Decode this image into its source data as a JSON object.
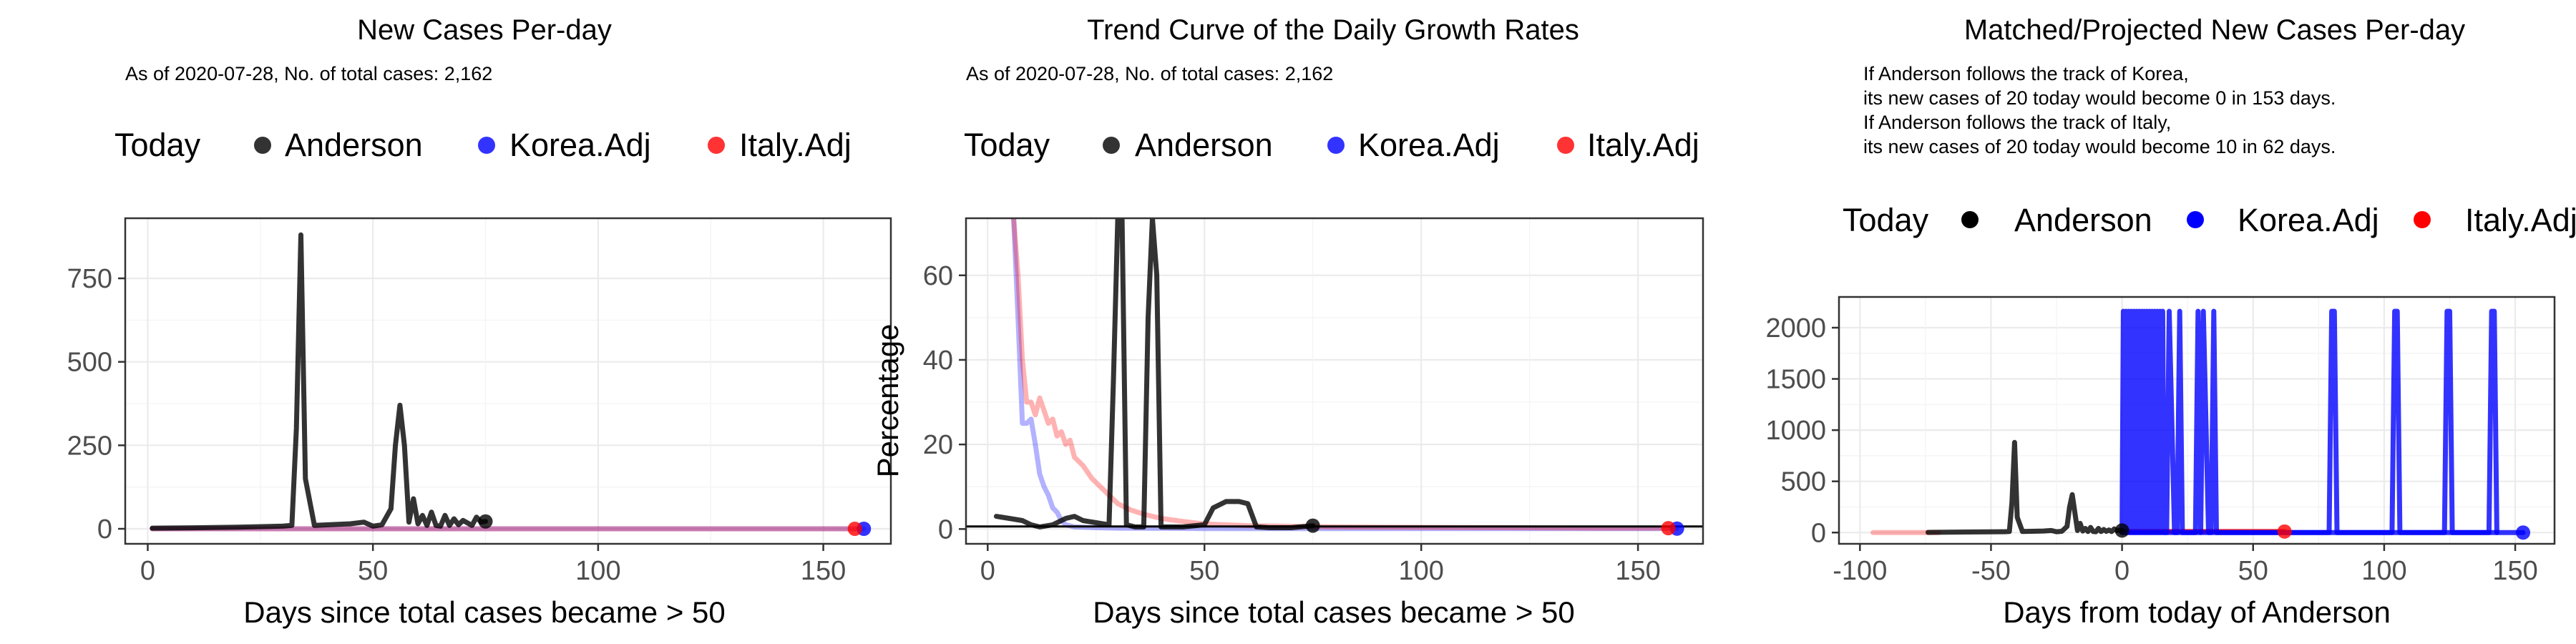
{
  "chart_data": [
    {
      "type": "line",
      "title": "New Cases Per-day",
      "subtitle": "As of 2020-07-28, No. of total cases: 2,162",
      "legend": {
        "title": "Today",
        "position": "top",
        "entries": [
          "Anderson",
          "Korea.Adj",
          "Italy.Adj"
        ]
      },
      "xlabel": "Days since total cases became > 50",
      "ylabel": "",
      "xlim": [
        -5,
        165
      ],
      "ylim": [
        -45,
        930
      ],
      "xticks": [
        0,
        50,
        100,
        150
      ],
      "yticks": [
        0,
        250,
        500,
        750
      ],
      "grid": true,
      "series": [
        {
          "name": "Korea.Adj",
          "color": "#0000ff",
          "opacity": 0.3,
          "x": [
            1,
            159
          ],
          "y": [
            0,
            0
          ]
        },
        {
          "name": "Italy.Adj",
          "color": "#ff0000",
          "opacity": 0.3,
          "x": [
            1,
            157
          ],
          "y": [
            0,
            0
          ]
        },
        {
          "name": "Anderson",
          "color": "#000000",
          "opacity": 0.8,
          "x": [
            1,
            10,
            20,
            30,
            32,
            33,
            34,
            35,
            37,
            45,
            48,
            50,
            52,
            54,
            55,
            56,
            57,
            58,
            59,
            60,
            61,
            62,
            63,
            64,
            65,
            66,
            67,
            68,
            69,
            70,
            72,
            73,
            74,
            75
          ],
          "y": [
            2,
            3,
            5,
            8,
            10,
            300,
            880,
            150,
            10,
            15,
            20,
            8,
            12,
            60,
            250,
            370,
            250,
            20,
            90,
            15,
            40,
            10,
            50,
            10,
            8,
            40,
            10,
            30,
            12,
            25,
            10,
            35,
            20,
            22
          ]
        }
      ],
      "today_points": [
        {
          "name": "Anderson",
          "color": "#000000",
          "x": 75,
          "y": 22
        },
        {
          "name": "Korea.Adj",
          "color": "#0000ff",
          "x": 159,
          "y": 0
        },
        {
          "name": "Italy.Adj",
          "color": "#ff0000",
          "x": 157,
          "y": 0
        }
      ]
    },
    {
      "type": "line",
      "title": "Trend Curve of the Daily Growth Rates",
      "subtitle": "As of 2020-07-28, No. of total cases: 2,162",
      "legend": {
        "title": "Today",
        "position": "top",
        "entries": [
          "Anderson",
          "Korea.Adj",
          "Italy.Adj"
        ]
      },
      "xlabel": "Days since total cases became > 50",
      "ylabel": "Percentage",
      "xlim": [
        -5,
        165
      ],
      "ylim": [
        -3.5,
        73.5
      ],
      "xticks": [
        0,
        50,
        100,
        150
      ],
      "yticks": [
        0,
        20,
        40,
        60
      ],
      "grid": true,
      "hline": 0.6,
      "series": [
        {
          "name": "Korea.Adj",
          "color": "#0000ff",
          "opacity": 0.3,
          "x": [
            6,
            7,
            8,
            9,
            10,
            11,
            12,
            13,
            14,
            15,
            16,
            17,
            18,
            20,
            25,
            30,
            50,
            100,
            159
          ],
          "y": [
            73.5,
            50,
            25,
            25,
            26,
            20,
            13,
            10,
            8,
            5,
            4,
            2,
            1,
            0.5,
            0.3,
            0.2,
            0.1,
            0.1,
            0.1
          ]
        },
        {
          "name": "Italy.Adj",
          "color": "#ff0000",
          "opacity": 0.3,
          "x": [
            6,
            7,
            8,
            9,
            10,
            11,
            12,
            13,
            14,
            15,
            16,
            17,
            18,
            19,
            20,
            22,
            24,
            26,
            28,
            30,
            33,
            36,
            40,
            45,
            50,
            60,
            80,
            100,
            120,
            140,
            157
          ],
          "y": [
            73.5,
            60,
            40,
            30,
            30,
            27,
            31,
            28,
            25,
            26,
            22,
            23,
            20,
            21,
            17,
            15,
            12,
            10,
            8,
            6,
            4.5,
            3.5,
            2.5,
            1.8,
            1.2,
            0.8,
            0.5,
            0.4,
            0.3,
            0.2,
            0.2
          ]
        },
        {
          "name": "Anderson",
          "color": "#000000",
          "opacity": 0.8,
          "x": [
            2,
            5,
            8,
            10,
            12,
            15,
            18,
            20,
            22,
            25,
            28,
            29,
            30,
            31,
            32,
            34,
            36,
            37,
            38,
            39,
            40,
            45,
            50,
            52,
            55,
            58,
            60,
            62,
            65,
            70,
            75
          ],
          "y": [
            3,
            2.5,
            2,
            1,
            0.5,
            1,
            2.5,
            3,
            2,
            1.5,
            1,
            35,
            73.5,
            73.5,
            1,
            0.5,
            0.5,
            50,
            73.5,
            60,
            0.5,
            0.5,
            1,
            5,
            6.5,
            6.5,
            6,
            0.5,
            0.3,
            0.3,
            0.8
          ]
        }
      ],
      "today_points": [
        {
          "name": "Anderson",
          "color": "#000000",
          "x": 75,
          "y": 0.8
        },
        {
          "name": "Korea.Adj",
          "color": "#0000ff",
          "x": 159,
          "y": 0.1
        },
        {
          "name": "Italy.Adj",
          "color": "#ff0000",
          "x": 157,
          "y": 0.2
        }
      ]
    },
    {
      "type": "line",
      "title": "Matched/Projected New Cases Per-day",
      "subtitle_lines": [
        "If Anderson follows the track of Korea,",
        "its new cases of 20 today would become 0 in 153 days.",
        "If Anderson follows the track of Italy,",
        "its new cases of 20 today would become 10 in 62 days."
      ],
      "legend": {
        "title": "Today",
        "position": "top",
        "entries": [
          "Anderson",
          "Korea.Adj",
          "Italy.Adj"
        ]
      },
      "xlabel": "Days from today of Anderson",
      "ylabel": "",
      "xlim": [
        -108,
        165
      ],
      "ylim": [
        -110,
        2300
      ],
      "xticks": [
        -100,
        -50,
        0,
        50,
        100,
        150
      ],
      "yticks": [
        0,
        500,
        1000,
        1500,
        2000
      ],
      "grid": true,
      "series": [
        {
          "name": "Italy.Adj",
          "color": "#ff0000",
          "opacity": 0.3,
          "x": [
            -95,
            -70
          ],
          "y": [
            0,
            0
          ]
        },
        {
          "name": "Italy.Adj",
          "color": "#ff0000",
          "opacity": 0.8,
          "x": [
            0,
            62
          ],
          "y": [
            10,
            10
          ]
        },
        {
          "name": "Korea.Adj",
          "color": "#0000ff",
          "opacity": 0.8,
          "x": [
            0,
            153
          ],
          "y": [
            0,
            0
          ]
        },
        {
          "name": "Korea.Adj",
          "color": "#0000ff",
          "opacity": 0.8,
          "x": [
            0,
            0.5,
            1,
            1.5,
            2,
            2.5,
            3,
            3.5,
            4,
            4.5,
            5,
            5.5,
            6,
            6.5,
            7,
            7.5,
            8,
            8.5,
            9,
            9.5,
            10,
            10.5,
            11,
            11.5,
            12,
            12.5,
            13,
            13.5,
            14,
            14.5,
            15,
            15.5,
            16,
            17,
            18,
            20,
            21,
            22,
            23,
            25,
            28,
            29,
            30,
            31,
            33,
            34,
            35,
            36,
            37,
            79,
            80,
            81,
            82,
            103,
            104,
            105,
            106,
            123,
            124,
            125,
            126,
            140,
            141,
            142,
            143
          ],
          "y": [
            0,
            2160,
            0,
            2160,
            0,
            2160,
            0,
            2160,
            0,
            2160,
            0,
            2160,
            0,
            2160,
            0,
            2160,
            0,
            2160,
            0,
            2160,
            0,
            2160,
            0,
            2160,
            0,
            2160,
            0,
            2160,
            0,
            2160,
            0,
            2160,
            0,
            0,
            2160,
            0,
            0,
            2160,
            0,
            0,
            0,
            2160,
            0,
            2160,
            0,
            0,
            2160,
            0,
            0,
            0,
            2160,
            2160,
            0,
            0,
            2160,
            2160,
            0,
            0,
            2160,
            2160,
            0,
            0,
            2160,
            2160,
            0
          ]
        },
        {
          "name": "Anderson",
          "color": "#000000",
          "opacity": 0.8,
          "x": [
            -74,
            -60,
            -45,
            -43,
            -42,
            -41,
            -40,
            -38,
            -30,
            -27,
            -25,
            -23,
            -21,
            -20,
            -19,
            -17,
            -16,
            -15,
            -14,
            -13,
            -12,
            -11,
            -10,
            -9,
            -8,
            -7,
            -6,
            -5,
            -4,
            -3,
            -2,
            -1,
            0
          ],
          "y": [
            2,
            5,
            8,
            10,
            300,
            880,
            150,
            10,
            15,
            20,
            8,
            12,
            60,
            250,
            370,
            20,
            90,
            15,
            40,
            10,
            50,
            10,
            8,
            40,
            10,
            30,
            12,
            25,
            10,
            35,
            20,
            22,
            20
          ]
        }
      ],
      "today_points": [
        {
          "name": "Anderson",
          "color": "#000000",
          "x": 0,
          "y": 20
        },
        {
          "name": "Italy.Adj",
          "color": "#ff0000",
          "x": 62,
          "y": 10
        },
        {
          "name": "Korea.Adj",
          "color": "#0000ff",
          "x": 153,
          "y": 0
        }
      ]
    }
  ]
}
